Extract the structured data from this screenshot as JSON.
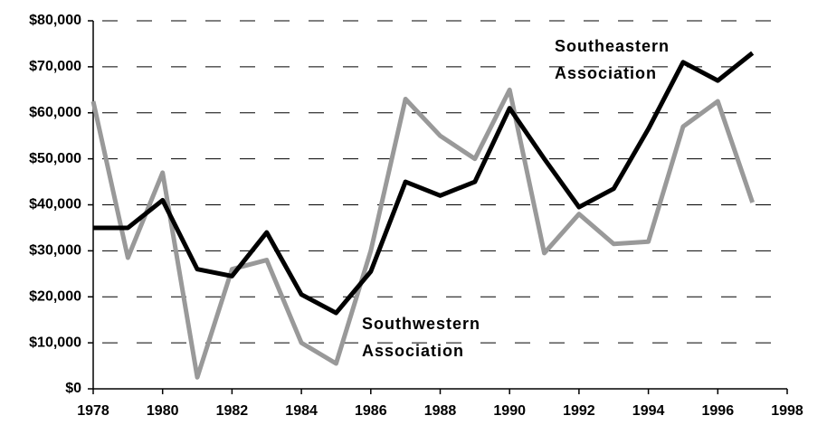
{
  "chart_data": {
    "type": "line",
    "x": [
      1978,
      1979,
      1980,
      1981,
      1982,
      1983,
      1984,
      1985,
      1986,
      1987,
      1988,
      1989,
      1990,
      1991,
      1992,
      1993,
      1994,
      1995,
      1996,
      1997
    ],
    "series": [
      {
        "name": "Southeastern Association",
        "color": "#000000",
        "values": [
          35000,
          35000,
          41000,
          26000,
          24500,
          34000,
          20500,
          16500,
          25500,
          45000,
          42000,
          45000,
          61000,
          50000,
          39500,
          43500,
          56500,
          71000,
          67000,
          73000
        ]
      },
      {
        "name": "Southwestern Association",
        "color": "#999999",
        "values": [
          62500,
          28500,
          47000,
          2500,
          26000,
          28000,
          10000,
          5500,
          30000,
          63000,
          55000,
          50000,
          65000,
          29500,
          38000,
          31500,
          32000,
          57000,
          62500,
          40500
        ]
      }
    ],
    "xlim": [
      1978,
      1998
    ],
    "xticks": [
      1978,
      1980,
      1982,
      1984,
      1986,
      1988,
      1990,
      1992,
      1994,
      1996,
      1998
    ],
    "ylim": [
      0,
      80000
    ],
    "yticks": [
      {
        "value": 0,
        "label": "$0"
      },
      {
        "value": 10000,
        "label": "$10,000"
      },
      {
        "value": 20000,
        "label": "$20,000"
      },
      {
        "value": 30000,
        "label": "$30,000"
      },
      {
        "value": 40000,
        "label": "$40,000"
      },
      {
        "value": 50000,
        "label": "$50,000"
      },
      {
        "value": 60000,
        "label": "$60,000"
      },
      {
        "value": 70000,
        "label": "$70,000"
      },
      {
        "value": 80000,
        "label": "$80,000"
      }
    ],
    "grid": true
  }
}
